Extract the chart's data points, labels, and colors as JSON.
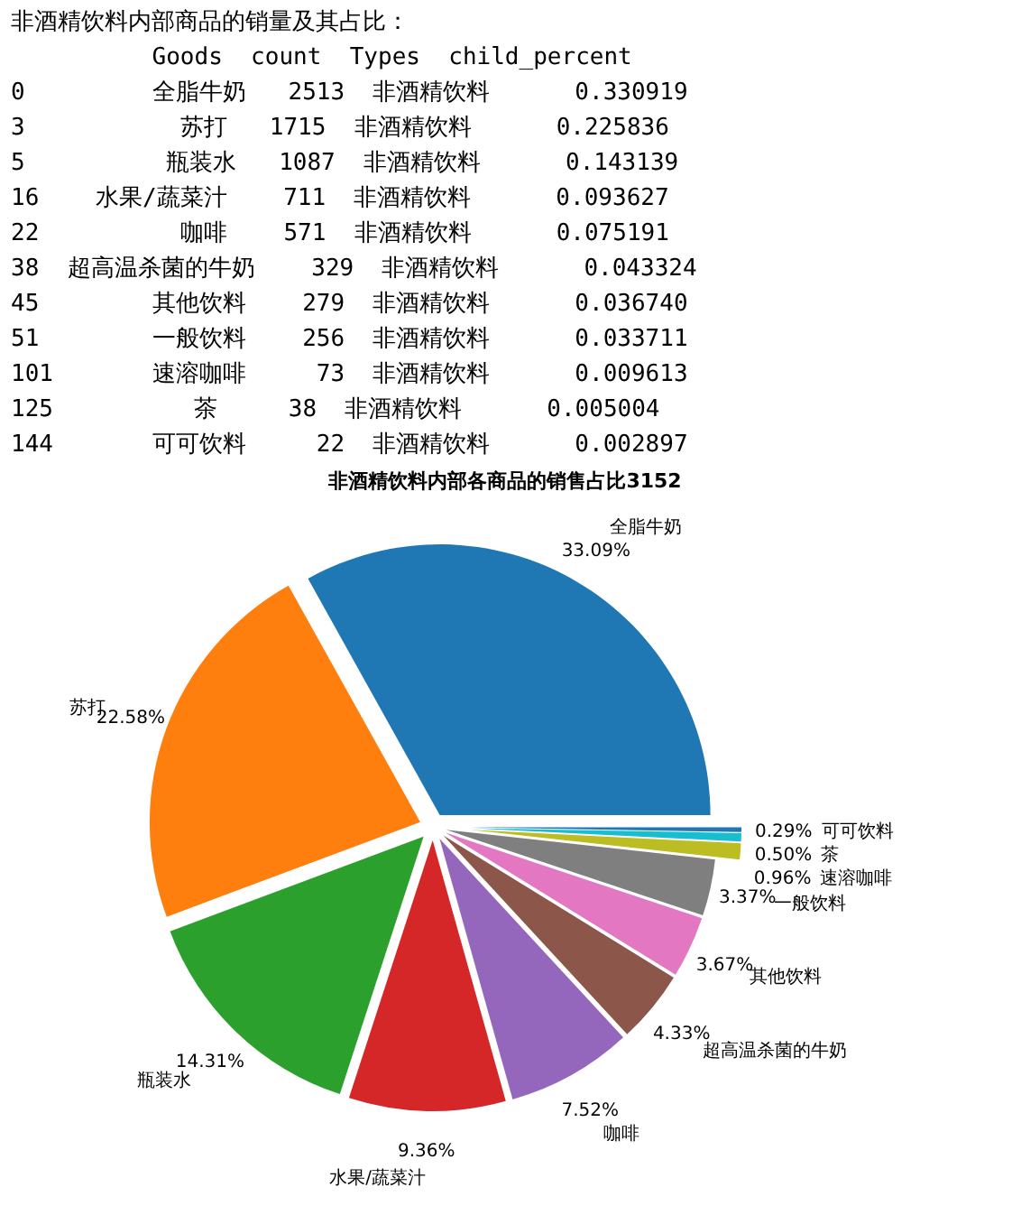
{
  "chart_data": {
    "type": "pie",
    "title": "非酒精饮料内部各商品的销售占比3152",
    "categories": [
      "全脂牛奶",
      "苏打",
      "瓶装水",
      "水果/蔬菜汁",
      "咖啡",
      "超高温杀菌的牛奶",
      "其他饮料",
      "一般饮料",
      "速溶咖啡",
      "茶",
      "可可饮料"
    ],
    "values": [
      33.09,
      22.58,
      14.31,
      9.36,
      7.52,
      4.33,
      3.67,
      3.37,
      0.96,
      0.5,
      0.29
    ],
    "value_labels": [
      "33.09%",
      "22.58%",
      "14.31%",
      "9.36%",
      "7.52%",
      "4.33%",
      "3.67%",
      "3.37%",
      "0.96%",
      "0.50%",
      "0.29%"
    ],
    "colors": [
      "#1f77b4",
      "#ff7f0e",
      "#2ca02c",
      "#d62728",
      "#9467bd",
      "#8c564b",
      "#e377c2",
      "#7f7f7f",
      "#bcbd22",
      "#17becf",
      "#1f77b4"
    ],
    "annotations": [
      "非酒精饮料内部商品的销量及其占比：",
      "          Goods  count  Types  child_percent",
      "0         全脂牛奶   2513  非酒精饮料      0.330919",
      "3           苏打   1715  非酒精饮料      0.225836",
      "5          瓶装水   1087  非酒精饮料      0.143139",
      "16    水果/蔬菜汁    711  非酒精饮料      0.093627",
      "22          咖啡    571  非酒精饮料      0.075191",
      "38  超高温杀菌的牛奶    329  非酒精饮料      0.043324",
      "45        其他饮料    279  非酒精饮料      0.036740",
      "51        一般饮料    256  非酒精饮料      0.033711",
      "101       速溶咖啡     73  非酒精饮料      0.009613",
      "125          茶     38  非酒精饮料      0.005004",
      "144       可可饮料     22  非酒精饮料      0.002897"
    ]
  }
}
